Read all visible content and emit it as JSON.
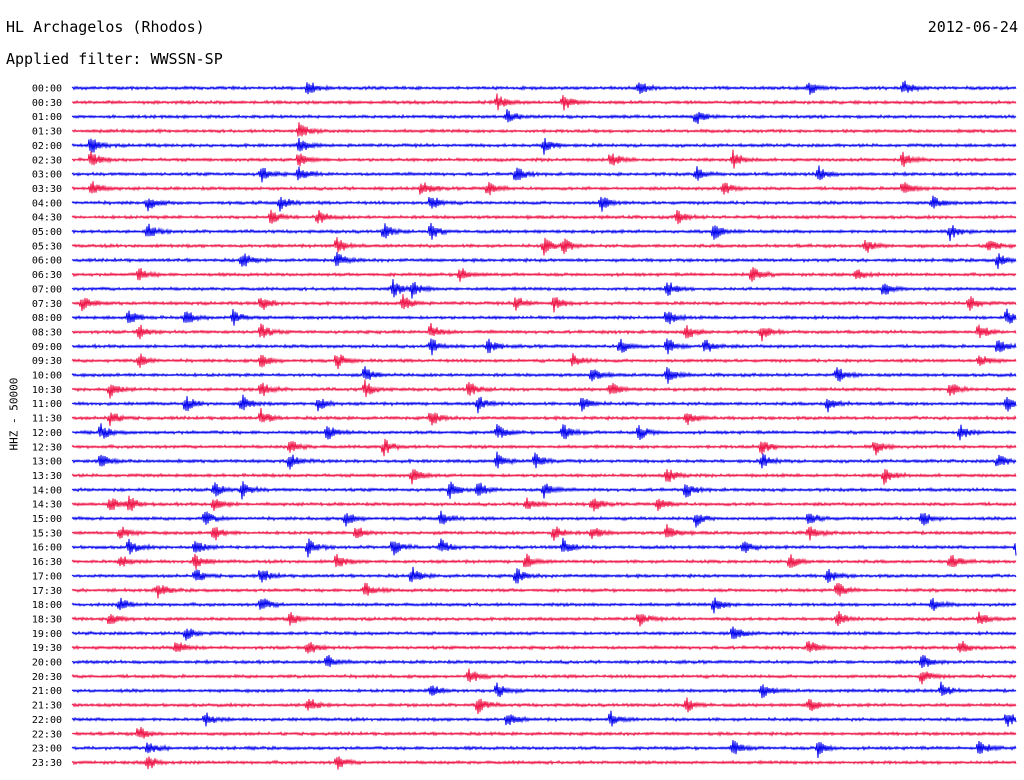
{
  "header": {
    "station": "HL Archagelos (Rhodos)",
    "date": "2012-06-24",
    "filter_label": "Applied filter: WWSSN-SP"
  },
  "chart_data": {
    "type": "line",
    "title": "HL Archagelos (Rhodos)",
    "ylabel": "HHZ - 50000",
    "xlabel": "",
    "rows": [
      "00:00",
      "00:30",
      "01:00",
      "01:30",
      "02:00",
      "02:30",
      "03:00",
      "03:30",
      "04:00",
      "04:30",
      "05:00",
      "05:30",
      "06:00",
      "06:30",
      "07:00",
      "07:30",
      "08:00",
      "08:30",
      "09:00",
      "09:30",
      "10:00",
      "10:30",
      "11:00",
      "11:30",
      "12:00",
      "12:30",
      "13:00",
      "13:30",
      "14:00",
      "14:30",
      "15:00",
      "15:30",
      "16:00",
      "16:30",
      "17:00",
      "17:30",
      "18:00",
      "18:30",
      "19:00",
      "19:30",
      "20:00",
      "20:30",
      "21:00",
      "21:30",
      "22:00",
      "22:30",
      "23:00",
      "23:30"
    ],
    "row_colors": [
      "#0000ee",
      "#ee1144"
    ],
    "grid": false,
    "legend": "none",
    "events": [
      {
        "row": "00:00",
        "t": [
          0.25,
          0.6,
          0.78,
          0.88
        ]
      },
      {
        "row": "00:30",
        "t": [
          0.45,
          0.52
        ]
      },
      {
        "row": "01:00",
        "t": [
          0.46,
          0.66
        ]
      },
      {
        "row": "01:30",
        "t": [
          0.24
        ]
      },
      {
        "row": "02:00",
        "t": [
          0.02,
          0.24,
          0.5
        ]
      },
      {
        "row": "02:30",
        "t": [
          0.02,
          0.24,
          0.57,
          0.7,
          0.88
        ]
      },
      {
        "row": "03:00",
        "t": [
          0.2,
          0.24,
          0.47,
          0.66,
          0.79
        ]
      },
      {
        "row": "03:30",
        "t": [
          0.02,
          0.37,
          0.44,
          0.69,
          0.88
        ]
      },
      {
        "row": "04:00",
        "t": [
          0.08,
          0.22,
          0.38,
          0.56,
          0.91
        ]
      },
      {
        "row": "04:30",
        "t": [
          0.21,
          0.26,
          0.64
        ]
      },
      {
        "row": "05:00",
        "t": [
          0.08,
          0.33,
          0.38,
          0.68,
          0.93
        ]
      },
      {
        "row": "05:30",
        "t": [
          0.28,
          0.5,
          0.52,
          0.84,
          0.97
        ]
      },
      {
        "row": "06:00",
        "t": [
          0.18,
          0.28,
          0.98
        ]
      },
      {
        "row": "06:30",
        "t": [
          0.07,
          0.41,
          0.72,
          0.83
        ]
      },
      {
        "row": "07:00",
        "t": [
          0.34,
          0.36,
          0.63,
          0.86
        ]
      },
      {
        "row": "07:30",
        "t": [
          0.01,
          0.2,
          0.35,
          0.47,
          0.51,
          0.95
        ]
      },
      {
        "row": "08:00",
        "t": [
          0.06,
          0.12,
          0.17,
          0.63,
          0.99
        ]
      },
      {
        "row": "08:30",
        "t": [
          0.07,
          0.2,
          0.38,
          0.65,
          0.73,
          0.96
        ]
      },
      {
        "row": "09:00",
        "t": [
          0.38,
          0.44,
          0.58,
          0.63,
          0.67,
          0.98
        ]
      },
      {
        "row": "09:30",
        "t": [
          0.07,
          0.2,
          0.28,
          0.53,
          0.96
        ]
      },
      {
        "row": "10:00",
        "t": [
          0.31,
          0.55,
          0.63,
          0.81
        ]
      },
      {
        "row": "10:30",
        "t": [
          0.04,
          0.2,
          0.31,
          0.42,
          0.57,
          0.93
        ]
      },
      {
        "row": "11:00",
        "t": [
          0.12,
          0.18,
          0.26,
          0.43,
          0.54,
          0.8,
          0.99
        ]
      },
      {
        "row": "11:30",
        "t": [
          0.04,
          0.2,
          0.38,
          0.65
        ]
      },
      {
        "row": "12:00",
        "t": [
          0.03,
          0.27,
          0.45,
          0.52,
          0.6,
          0.94
        ]
      },
      {
        "row": "12:30",
        "t": [
          0.23,
          0.33,
          0.73,
          0.85
        ]
      },
      {
        "row": "13:00",
        "t": [
          0.03,
          0.23,
          0.45,
          0.49,
          0.73,
          0.98
        ]
      },
      {
        "row": "13:30",
        "t": [
          0.36,
          0.63,
          0.86
        ]
      },
      {
        "row": "14:00",
        "t": [
          0.15,
          0.18,
          0.4,
          0.43,
          0.5,
          0.65
        ]
      },
      {
        "row": "14:30",
        "t": [
          0.04,
          0.06,
          0.15,
          0.48,
          0.55,
          0.62
        ]
      },
      {
        "row": "15:00",
        "t": [
          0.14,
          0.29,
          0.39,
          0.66,
          0.78,
          0.9
        ]
      },
      {
        "row": "15:30",
        "t": [
          0.05,
          0.15,
          0.3,
          0.51,
          0.55,
          0.63,
          0.78
        ]
      },
      {
        "row": "16:00",
        "t": [
          0.06,
          0.13,
          0.25,
          0.34,
          0.39,
          0.52,
          0.71,
          1.0
        ]
      },
      {
        "row": "16:30",
        "t": [
          0.05,
          0.13,
          0.28,
          0.48,
          0.76,
          0.93
        ]
      },
      {
        "row": "17:00",
        "t": [
          0.13,
          0.2,
          0.36,
          0.47,
          0.8
        ]
      },
      {
        "row": "17:30",
        "t": [
          0.09,
          0.31,
          0.81
        ]
      },
      {
        "row": "18:00",
        "t": [
          0.05,
          0.2,
          0.68,
          0.91
        ]
      },
      {
        "row": "18:30",
        "t": [
          0.04,
          0.23,
          0.6,
          0.81,
          0.96
        ]
      },
      {
        "row": "19:00",
        "t": [
          0.12,
          0.7
        ]
      },
      {
        "row": "19:30",
        "t": [
          0.11,
          0.25,
          0.78,
          0.94
        ]
      },
      {
        "row": "20:00",
        "t": [
          0.27,
          0.9
        ]
      },
      {
        "row": "20:30",
        "t": [
          0.42,
          0.9
        ]
      },
      {
        "row": "21:00",
        "t": [
          0.38,
          0.45,
          0.73,
          0.92
        ]
      },
      {
        "row": "21:30",
        "t": [
          0.25,
          0.43,
          0.65,
          0.78
        ]
      },
      {
        "row": "22:00",
        "t": [
          0.14,
          0.46,
          0.57,
          0.99
        ]
      },
      {
        "row": "22:30",
        "t": [
          0.07
        ]
      },
      {
        "row": "23:00",
        "t": [
          0.08,
          0.7,
          0.79,
          0.96
        ]
      },
      {
        "row": "23:30",
        "t": [
          0.08,
          0.28
        ]
      }
    ]
  }
}
